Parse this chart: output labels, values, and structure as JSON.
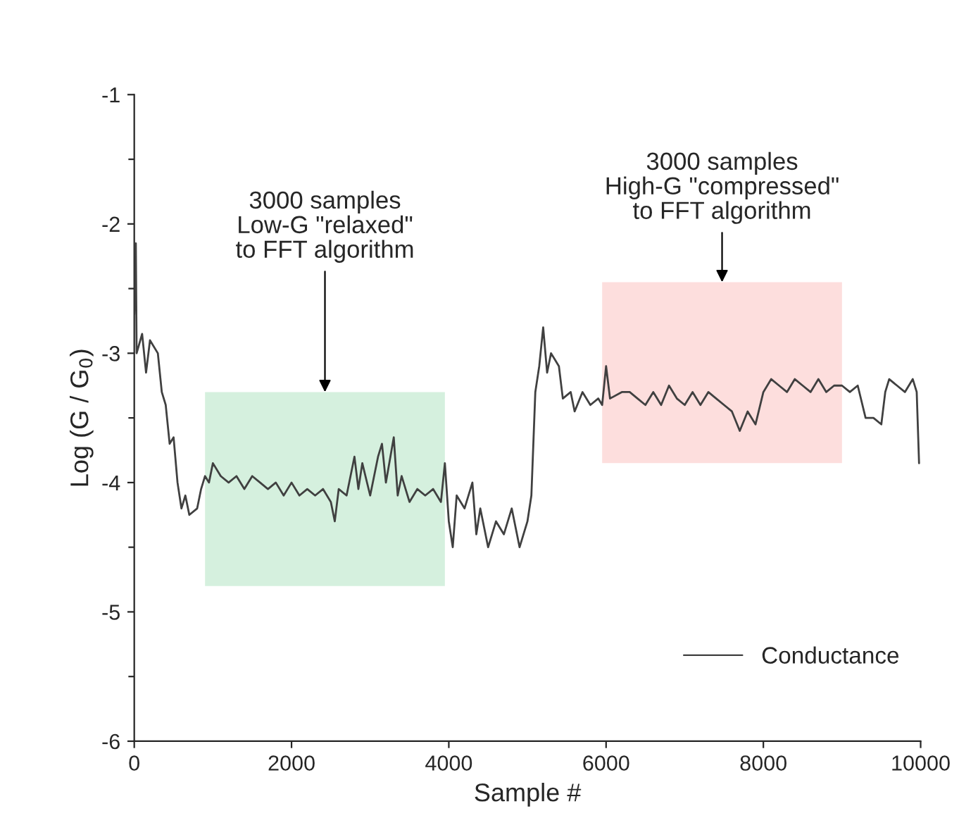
{
  "chart_data": {
    "type": "line",
    "xlabel": "Sample #",
    "ylabel": "Log (G / G$_{0}$)",
    "xlim": [
      0,
      10000
    ],
    "xticks": [
      0,
      2000,
      4000,
      6000,
      8000,
      10000
    ],
    "ylim": [
      -6,
      -1
    ],
    "yticks": [
      -6,
      {
        "value": -5.5,
        "label": null
      },
      -5,
      {
        "value": -4.5,
        "label": null
      },
      -4,
      {
        "value": -3.5,
        "label": null
      },
      -3,
      {
        "value": -2.5,
        "label": null
      },
      -2,
      {
        "value": -1.5,
        "label": null
      },
      -1
    ],
    "grid": false,
    "legend": "bottom right",
    "marker": "none",
    "line_style": "solid",
    "series": [
      {
        "name": "Conductance",
        "color": "#404040",
        "x": [
          0,
          20,
          30,
          100,
          150,
          200,
          300,
          350,
          400,
          450,
          500,
          550,
          600,
          650,
          700,
          800,
          850,
          900,
          950,
          1000,
          1100,
          1200,
          1300,
          1400,
          1500,
          1600,
          1700,
          1800,
          1900,
          2000,
          2100,
          2200,
          2300,
          2400,
          2500,
          2550,
          2600,
          2700,
          2800,
          2850,
          2900,
          3000,
          3100,
          3150,
          3200,
          3300,
          3350,
          3400,
          3500,
          3600,
          3700,
          3800,
          3900,
          3950,
          4000,
          4050,
          4100,
          4200,
          4300,
          4350,
          4400,
          4500,
          4600,
          4700,
          4800,
          4900,
          5000,
          5050,
          5100,
          5150,
          5200,
          5250,
          5300,
          5400,
          5450,
          5550,
          5600,
          5700,
          5800,
          5900,
          5950,
          6000,
          6050,
          6200,
          6300,
          6400,
          6500,
          6600,
          6700,
          6800,
          6900,
          7000,
          7100,
          7200,
          7300,
          7400,
          7500,
          7600,
          7700,
          7800,
          7900,
          8000,
          8100,
          8200,
          8300,
          8400,
          8500,
          8600,
          8700,
          8800,
          8900,
          9000,
          9100,
          9200,
          9300,
          9400,
          9500,
          9550,
          9600,
          9700,
          9800,
          9900,
          9950,
          9980
        ],
        "values": [
          -2.7,
          -2.15,
          -3.0,
          -2.85,
          -3.15,
          -2.9,
          -3.0,
          -3.3,
          -3.4,
          -3.7,
          -3.65,
          -4.0,
          -4.2,
          -4.1,
          -4.25,
          -4.2,
          -4.05,
          -3.95,
          -4.0,
          -3.85,
          -3.95,
          -4.0,
          -3.95,
          -4.05,
          -3.95,
          -4.0,
          -4.05,
          -4.0,
          -4.1,
          -4.0,
          -4.1,
          -4.05,
          -4.1,
          -4.05,
          -4.15,
          -4.3,
          -4.05,
          -4.1,
          -3.8,
          -4.05,
          -3.85,
          -4.1,
          -3.8,
          -3.7,
          -4.0,
          -3.65,
          -4.1,
          -3.95,
          -4.15,
          -4.05,
          -4.1,
          -4.05,
          -4.15,
          -3.85,
          -4.3,
          -4.5,
          -4.1,
          -4.2,
          -4.0,
          -4.4,
          -4.2,
          -4.5,
          -4.3,
          -4.4,
          -4.2,
          -4.5,
          -4.3,
          -4.1,
          -3.3,
          -3.1,
          -2.8,
          -3.15,
          -3.0,
          -3.1,
          -3.35,
          -3.3,
          -3.45,
          -3.3,
          -3.4,
          -3.35,
          -3.4,
          -3.1,
          -3.35,
          -3.3,
          -3.3,
          -3.35,
          -3.4,
          -3.3,
          -3.4,
          -3.25,
          -3.35,
          -3.4,
          -3.3,
          -3.4,
          -3.3,
          -3.35,
          -3.4,
          -3.45,
          -3.6,
          -3.45,
          -3.55,
          -3.3,
          -3.2,
          -3.25,
          -3.3,
          -3.2,
          -3.25,
          -3.3,
          -3.2,
          -3.3,
          -3.25,
          -3.25,
          -3.3,
          -3.25,
          -3.5,
          -3.5,
          -3.55,
          -3.3,
          -3.2,
          -3.25,
          -3.3,
          -3.2,
          -3.3,
          -3.85
        ]
      }
    ],
    "bands": [
      {
        "axis": "x",
        "from": 900,
        "to": 3950,
        "color": "#d5f0de"
      },
      {
        "axis": "x",
        "from": 5950,
        "to": 9000,
        "color": "#fddedd"
      }
    ],
    "annotations": [
      {
        "text": "3000 samples\nLow-G \"relaxed\"\nto FFT algorithm",
        "x": 2425,
        "y": -3.3
      },
      {
        "text": "3000 samples\nHigh-G \"compressed\"\nto FFT algorithm",
        "x": 7475,
        "y": -2.45
      }
    ]
  }
}
